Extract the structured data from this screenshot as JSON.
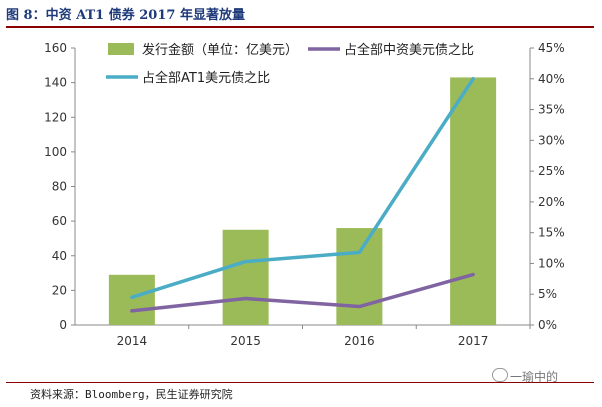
{
  "figure": {
    "title": "图 8：中资 AT1 债券 2017 年显著放量",
    "source": "资料来源：Bloomberg，民生证券研究院",
    "watermark": "一瑜中的"
  },
  "chart_data": {
    "type": "bar",
    "categories": [
      "2014",
      "2015",
      "2016",
      "2017"
    ],
    "series": [
      {
        "name": "发行金额（单位：亿美元）",
        "kind": "bar",
        "axis": "left",
        "color": "#9bbb59",
        "values": [
          29,
          55,
          56,
          143
        ]
      },
      {
        "name": "占全部中资美元债之比",
        "kind": "line",
        "axis": "right",
        "color": "#8064a2",
        "values": [
          0.023,
          0.043,
          0.03,
          0.082
        ]
      },
      {
        "name": "占全部AT1美元债之比",
        "kind": "line",
        "axis": "right",
        "color": "#4bacc6",
        "values": [
          0.045,
          0.103,
          0.118,
          0.4
        ]
      }
    ],
    "y_left": {
      "lim": [
        0,
        160
      ],
      "ticks": [
        0,
        20,
        40,
        60,
        80,
        100,
        120,
        140,
        160
      ]
    },
    "y_right": {
      "lim": [
        0,
        0.45
      ],
      "ticks": [
        "0%",
        "5%",
        "10%",
        "15%",
        "20%",
        "25%",
        "30%",
        "35%",
        "40%",
        "45%"
      ]
    },
    "grid": false,
    "legend": "top"
  }
}
